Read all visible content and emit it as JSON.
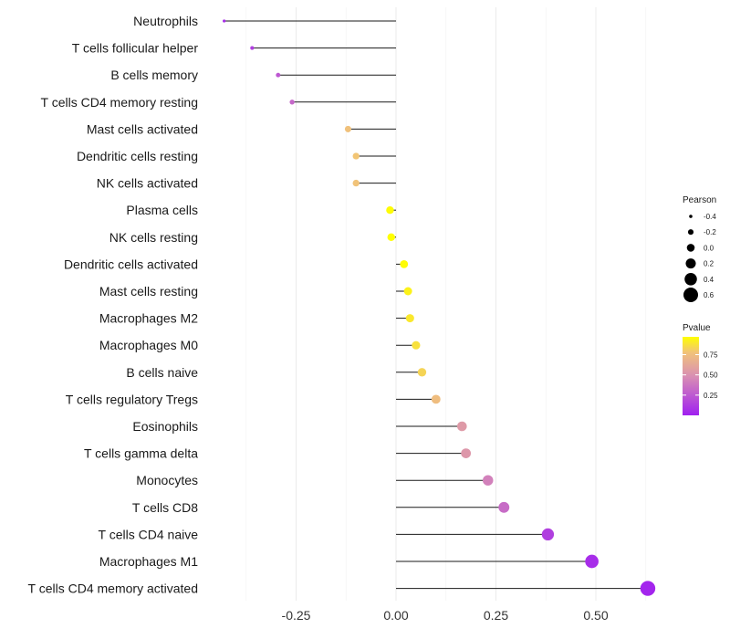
{
  "chart_data": {
    "type": "lollipop",
    "title": "",
    "xlabel": "",
    "ylabel": "",
    "xlim": [
      -0.46,
      0.7
    ],
    "xticks": [
      {
        "value": -0.25,
        "label": "-0.25"
      },
      {
        "value": 0.0,
        "label": "0.00"
      },
      {
        "value": 0.25,
        "label": "0.25"
      },
      {
        "value": 0.5,
        "label": "0.50"
      }
    ],
    "categories": [
      "Neutrophils",
      "T cells follicular helper",
      "B cells memory",
      "T cells CD4 memory resting",
      "Mast cells activated",
      "Dendritic cells resting",
      "NK cells activated",
      "Plasma cells",
      "NK cells resting",
      "Dendritic cells activated",
      "Mast cells resting",
      "Macrophages M2",
      "Macrophages M0",
      "B cells naive",
      "T cells regulatory  Tregs ",
      "Eosinophils",
      "T cells gamma delta",
      "Monocytes",
      "T cells CD8",
      "T cells CD4 naive",
      "Macrophages M1",
      "T cells CD4 memory activated"
    ],
    "pearson": [
      -0.43,
      -0.36,
      -0.295,
      -0.26,
      -0.12,
      -0.1,
      -0.1,
      -0.015,
      -0.012,
      0.02,
      0.03,
      0.035,
      0.05,
      0.065,
      0.1,
      0.165,
      0.175,
      0.23,
      0.27,
      0.38,
      0.49,
      0.63
    ],
    "pvalue": [
      0.05,
      0.12,
      0.22,
      0.28,
      0.72,
      0.74,
      0.73,
      0.96,
      0.97,
      0.96,
      0.92,
      0.88,
      0.85,
      0.8,
      0.7,
      0.5,
      0.48,
      0.38,
      0.3,
      0.12,
      0.05,
      0.02
    ],
    "legend_size": {
      "title": "Pearson",
      "entries": [
        {
          "label": "-0.4",
          "value": -0.4
        },
        {
          "label": "-0.2",
          "value": -0.2
        },
        {
          "label": "0.0",
          "value": 0.0
        },
        {
          "label": "0.2",
          "value": 0.2
        },
        {
          "label": "0.4",
          "value": 0.4
        },
        {
          "label": "0.6",
          "value": 0.6
        }
      ]
    },
    "legend_color": {
      "title": "Pvalue",
      "range": [
        0.0,
        0.97
      ],
      "low_color": "#a020f0",
      "mid_color": "#e7a3a6",
      "high_color": "#ffff00",
      "ticks": [
        {
          "label": "0.75",
          "value": 0.75
        },
        {
          "label": "0.50",
          "value": 0.5
        },
        {
          "label": "0.25",
          "value": 0.25
        }
      ]
    },
    "grid": true,
    "legend_position": "right"
  }
}
